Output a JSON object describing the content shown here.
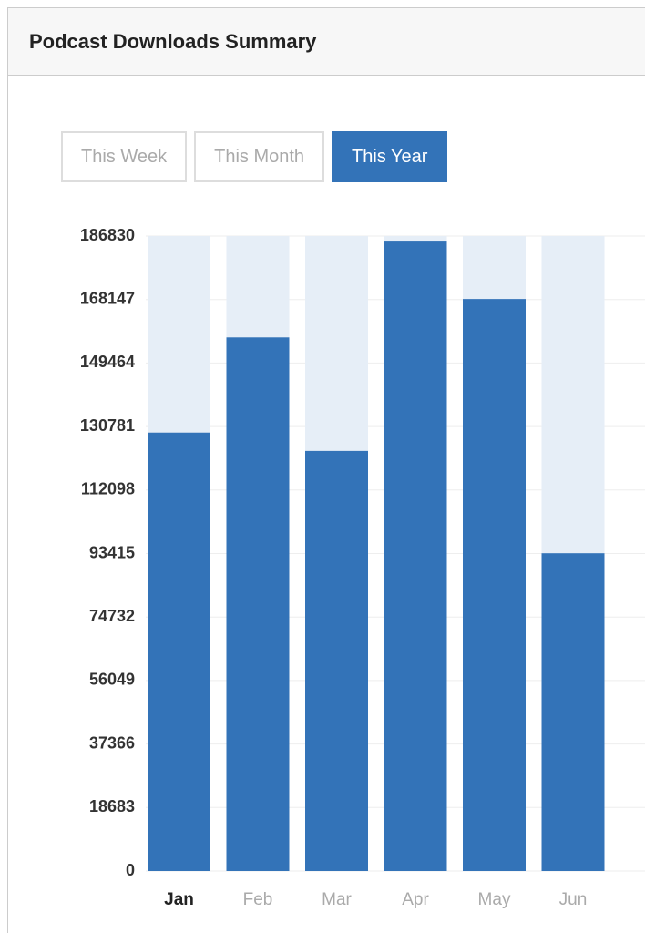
{
  "header": {
    "title": "Podcast Downloads Summary"
  },
  "tabs": [
    {
      "label": "This Week"
    },
    {
      "label": "This Month"
    },
    {
      "label": "This Year"
    }
  ],
  "active_tab": 2,
  "chart_data": {
    "type": "bar",
    "categories": [
      "Jan",
      "Feb",
      "Mar",
      "Apr",
      "May",
      "Jun"
    ],
    "values": [
      129000,
      157000,
      123600,
      185200,
      168300,
      93500
    ],
    "color": "#3373b8",
    "track_color": "#e6eef7",
    "highlight_category": 0,
    "ylim": [
      0,
      186830
    ],
    "yticks": [
      0,
      18683,
      37366,
      56049,
      74732,
      93415,
      112098,
      130781,
      149464,
      168147,
      186830
    ],
    "grid": true
  }
}
